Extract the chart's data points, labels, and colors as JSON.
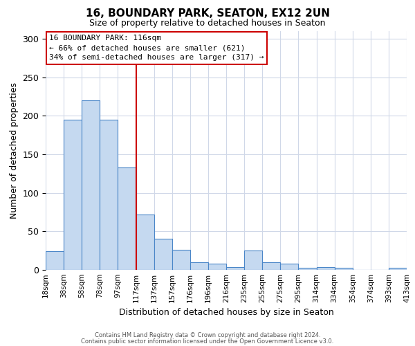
{
  "title": "16, BOUNDARY PARK, SEATON, EX12 2UN",
  "subtitle": "Size of property relative to detached houses in Seaton",
  "xlabel": "Distribution of detached houses by size in Seaton",
  "ylabel": "Number of detached properties",
  "bin_left_labels": [
    "18sqm",
    "38sqm",
    "58sqm",
    "78sqm",
    "97sqm",
    "117sqm",
    "137sqm",
    "157sqm",
    "176sqm",
    "196sqm",
    "216sqm",
    "235sqm",
    "255sqm",
    "275sqm",
    "295sqm",
    "314sqm",
    "334sqm",
    "354sqm",
    "374sqm",
    "393sqm",
    "413sqm"
  ],
  "bar_heights": [
    24,
    195,
    220,
    195,
    133,
    72,
    40,
    26,
    10,
    8,
    4,
    25,
    10,
    8,
    3,
    4,
    3,
    0,
    0,
    3
  ],
  "bar_color": "#c5d9f0",
  "bar_edge_color": "#4a86c8",
  "vline_color": "#cc0000",
  "ylim": [
    0,
    310
  ],
  "yticks": [
    0,
    50,
    100,
    150,
    200,
    250,
    300
  ],
  "annotation_title": "16 BOUNDARY PARK: 116sqm",
  "annotation_line1": "← 66% of detached houses are smaller (621)",
  "annotation_line2": "34% of semi-detached houses are larger (317) →",
  "annotation_box_color": "#ffffff",
  "annotation_box_edge_color": "#cc0000",
  "footer_line1": "Contains HM Land Registry data © Crown copyright and database right 2024.",
  "footer_line2": "Contains public sector information licensed under the Open Government Licence v3.0.",
  "background_color": "#ffffff",
  "grid_color": "#d0d8e8"
}
